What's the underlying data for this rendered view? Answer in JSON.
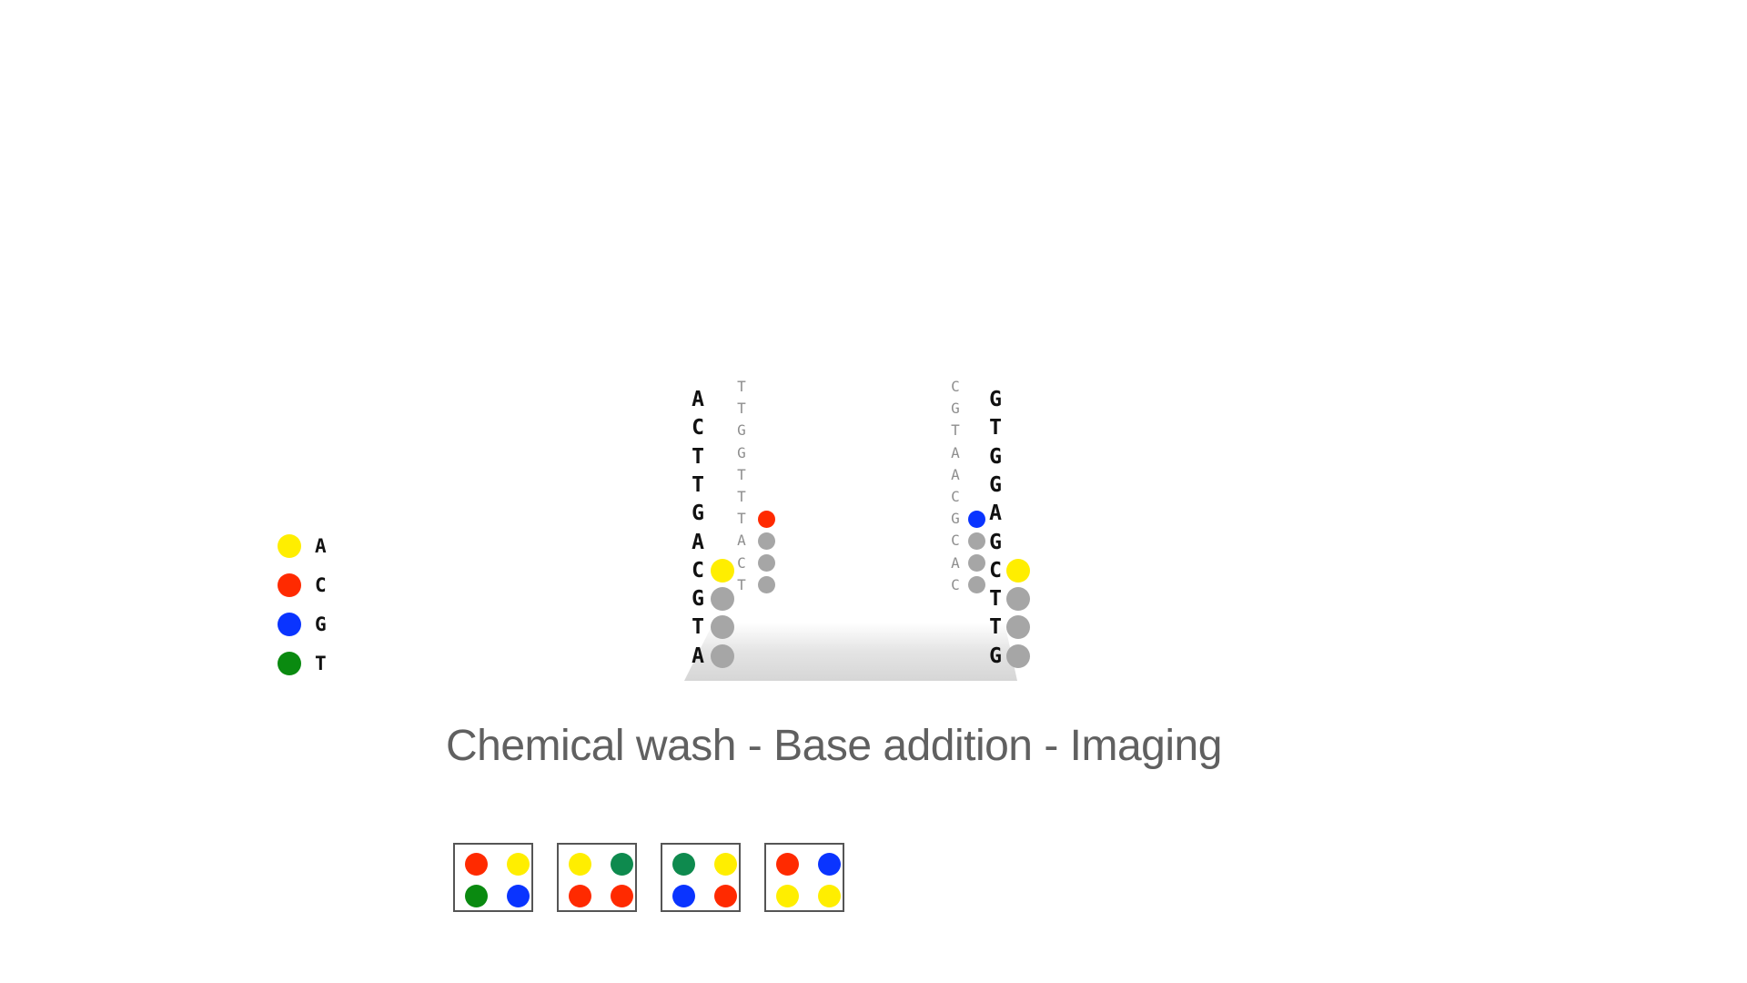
{
  "colors": {
    "A": "#ffee00",
    "C": "#ff2a00",
    "G": "#0a34ff",
    "T": "#0a8a10",
    "T_dark": "#0e8a4e",
    "unlabeled": "#a6a6a6",
    "text": "#111111",
    "template_text": "#8e8e8e",
    "caption_text": "#606060"
  },
  "legend": [
    {
      "base": "A",
      "color": "#ffee00"
    },
    {
      "base": "C",
      "color": "#ff2a00"
    },
    {
      "base": "G",
      "color": "#0a34ff"
    },
    {
      "base": "T",
      "color": "#0a8a10"
    }
  ],
  "clusters": {
    "left": {
      "strand_sequence": [
        "A",
        "C",
        "T",
        "T",
        "G",
        "A",
        "C",
        "G",
        "T",
        "A"
      ],
      "incorporated": [
        "unlabeled",
        "unlabeled",
        "unlabeled",
        "A"
      ],
      "template_sequence": [
        "T",
        "T",
        "G",
        "G",
        "T",
        "T",
        "T",
        "A",
        "C",
        "T"
      ],
      "template_incorporated": [
        "unlabeled",
        "unlabeled",
        "unlabeled",
        "C"
      ]
    },
    "right": {
      "strand_sequence": [
        "G",
        "T",
        "G",
        "G",
        "A",
        "G",
        "C",
        "T",
        "T",
        "G"
      ],
      "incorporated": [
        "unlabeled",
        "unlabeled",
        "unlabeled",
        "A"
      ],
      "template_sequence": [
        "C",
        "G",
        "T",
        "A",
        "A",
        "C",
        "G",
        "C",
        "A",
        "C"
      ],
      "template_incorporated": [
        "unlabeled",
        "unlabeled",
        "unlabeled",
        "G"
      ]
    }
  },
  "caption": "Chemical wash - Base addition - Imaging",
  "image_frames": [
    [
      "C",
      "A",
      "T",
      "G"
    ],
    [
      "A",
      "T_dark",
      "C",
      "C"
    ],
    [
      "T_dark",
      "A",
      "G",
      "C"
    ],
    [
      "C",
      "G",
      "A",
      "A"
    ]
  ]
}
